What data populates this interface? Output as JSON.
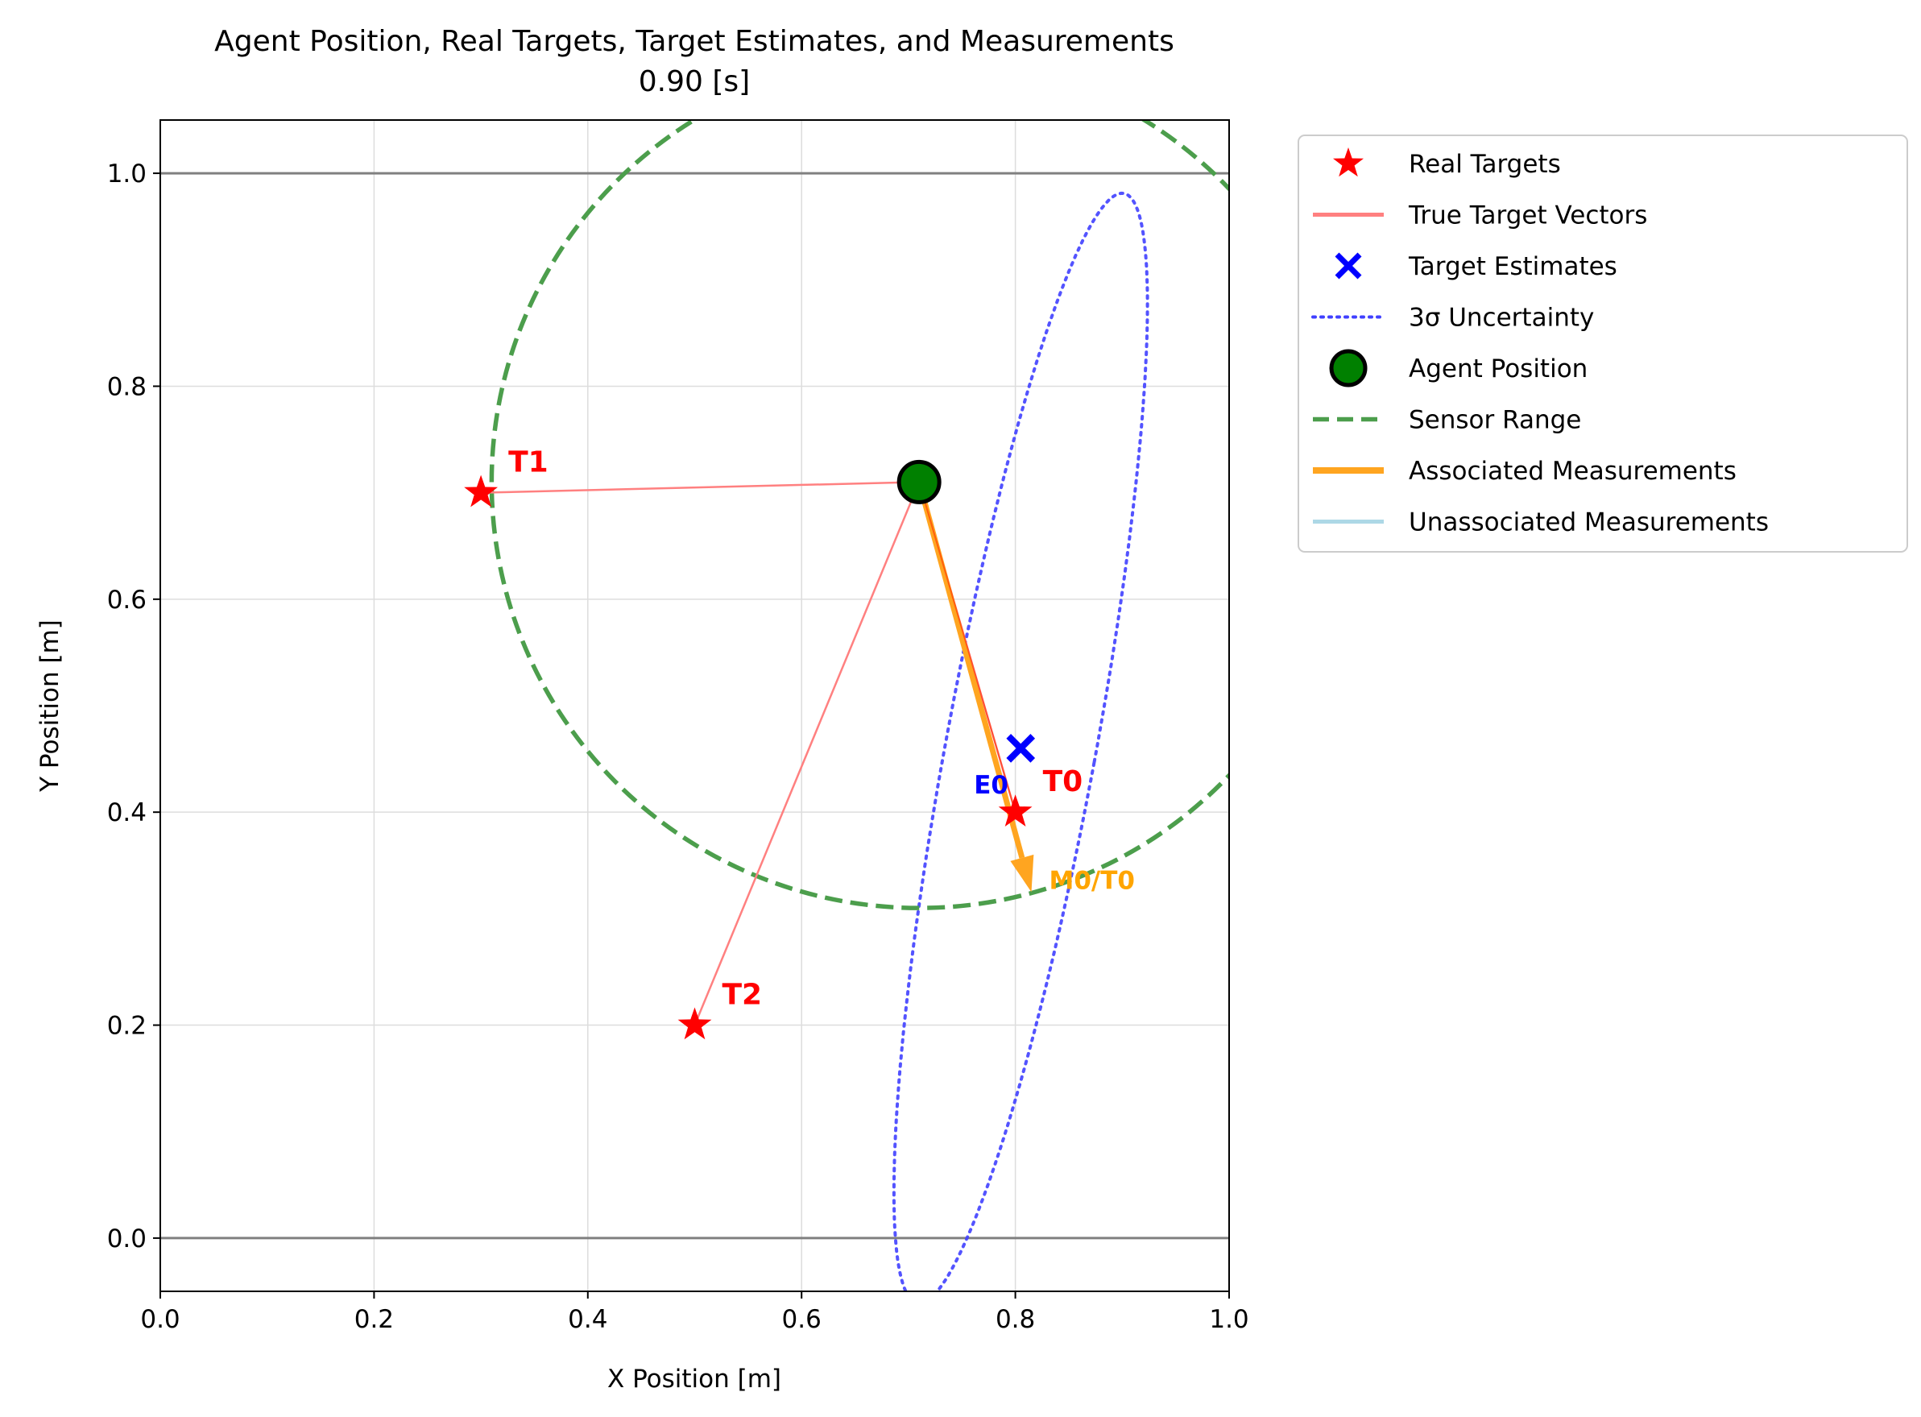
{
  "chart_data": {
    "type": "scatter",
    "title": "Agent Position, Real Targets, Target Estimates, and Measurements",
    "subtitle": "0.90 [s]",
    "xlabel": "X Position [m]",
    "ylabel": "Y Position [m]",
    "xlim": [
      0.0,
      1.0
    ],
    "ylim": [
      -0.05,
      1.05
    ],
    "xticks": [
      0.0,
      0.2,
      0.4,
      0.6,
      0.8,
      1.0
    ],
    "yticks": [
      0.0,
      0.2,
      0.4,
      0.6,
      0.8,
      1.0
    ],
    "xtick_labels": [
      "0.0",
      "0.2",
      "0.4",
      "0.6",
      "0.8",
      "1.0"
    ],
    "ytick_labels": [
      "0.0",
      "0.2",
      "0.4",
      "0.6",
      "0.8",
      "1.0"
    ],
    "grid": true,
    "horizontal_reference_lines": [
      0.0,
      1.0
    ],
    "agent": {
      "x": 0.71,
      "y": 0.71
    },
    "real_targets": [
      {
        "label": "T0",
        "x": 0.8,
        "y": 0.4
      },
      {
        "label": "T1",
        "x": 0.3,
        "y": 0.7
      },
      {
        "label": "T2",
        "x": 0.5,
        "y": 0.2
      }
    ],
    "target_estimates": [
      {
        "label": "E0",
        "x": 0.805,
        "y": 0.46
      }
    ],
    "uncertainty_ellipse": {
      "cx": 0.805,
      "cy": 0.46,
      "semi_major": 0.53,
      "semi_minor": 0.07,
      "angle_deg_from_vertical": 10.5
    },
    "sensor_range": {
      "cx": 0.71,
      "cy": 0.71,
      "radius": 0.4
    },
    "associated_measurements": [
      {
        "label": "M0/T0",
        "x_from": 0.71,
        "y_from": 0.71,
        "x_to": 0.815,
        "y_to": 0.325
      }
    ],
    "unassociated_measurements": [],
    "legend": {
      "placement": "outside-upper-right",
      "entries": [
        {
          "label": "Real Targets",
          "marker": "star",
          "color": "#ff0000"
        },
        {
          "label": "True Target Vectors",
          "marker": "line",
          "color": "#ff8080"
        },
        {
          "label": "Target Estimates",
          "marker": "x",
          "color": "#0000ff"
        },
        {
          "label": "3σ Uncertainty",
          "marker": "dotted",
          "color": "#4040ff"
        },
        {
          "label": "Agent Position",
          "marker": "circle",
          "color": "#008000"
        },
        {
          "label": "Sensor Range",
          "marker": "dashed",
          "color": "#4c9e4c"
        },
        {
          "label": "Associated Measurements",
          "marker": "thickline",
          "color": "#ffa520"
        },
        {
          "label": "Unassociated Measurements",
          "marker": "line",
          "color": "#add8e6"
        }
      ]
    },
    "colors": {
      "target": "#ff0000",
      "vector": "#ff8080",
      "estimate": "#0000ff",
      "uncertainty": "#4040ff",
      "agent_fill": "#008000",
      "sensor": "#4c9e4c",
      "assoc": "#ffa520",
      "unassoc": "#add8e6",
      "grid": "#dddddd",
      "refline": "#808080"
    }
  }
}
